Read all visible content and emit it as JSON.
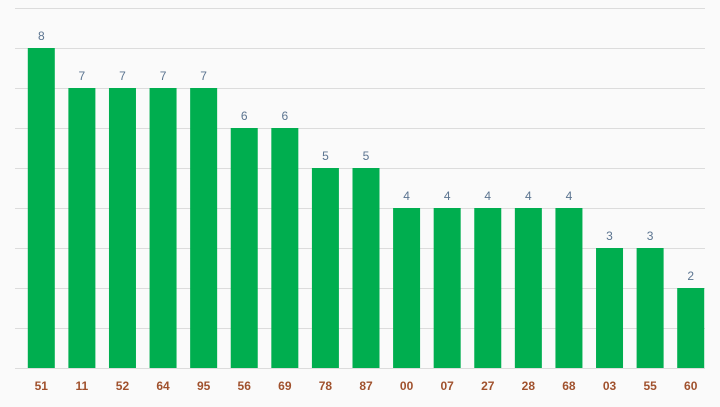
{
  "chart_data": {
    "type": "bar",
    "categories": [
      "51",
      "11",
      "52",
      "64",
      "95",
      "56",
      "69",
      "78",
      "87",
      "00",
      "07",
      "27",
      "28",
      "68",
      "03",
      "55",
      "60"
    ],
    "values": [
      8,
      7,
      7,
      7,
      7,
      6,
      6,
      5,
      5,
      4,
      4,
      4,
      4,
      4,
      3,
      3,
      2
    ],
    "title": "",
    "xlabel": "",
    "ylabel": "",
    "ylim": [
      0,
      9
    ],
    "grid": true,
    "colors": {
      "bar": "#00ae4f",
      "value_label": "#5b7490",
      "tick_label": "#a0512d",
      "grid": "#dcdcdc",
      "background": "#fafafa"
    }
  }
}
